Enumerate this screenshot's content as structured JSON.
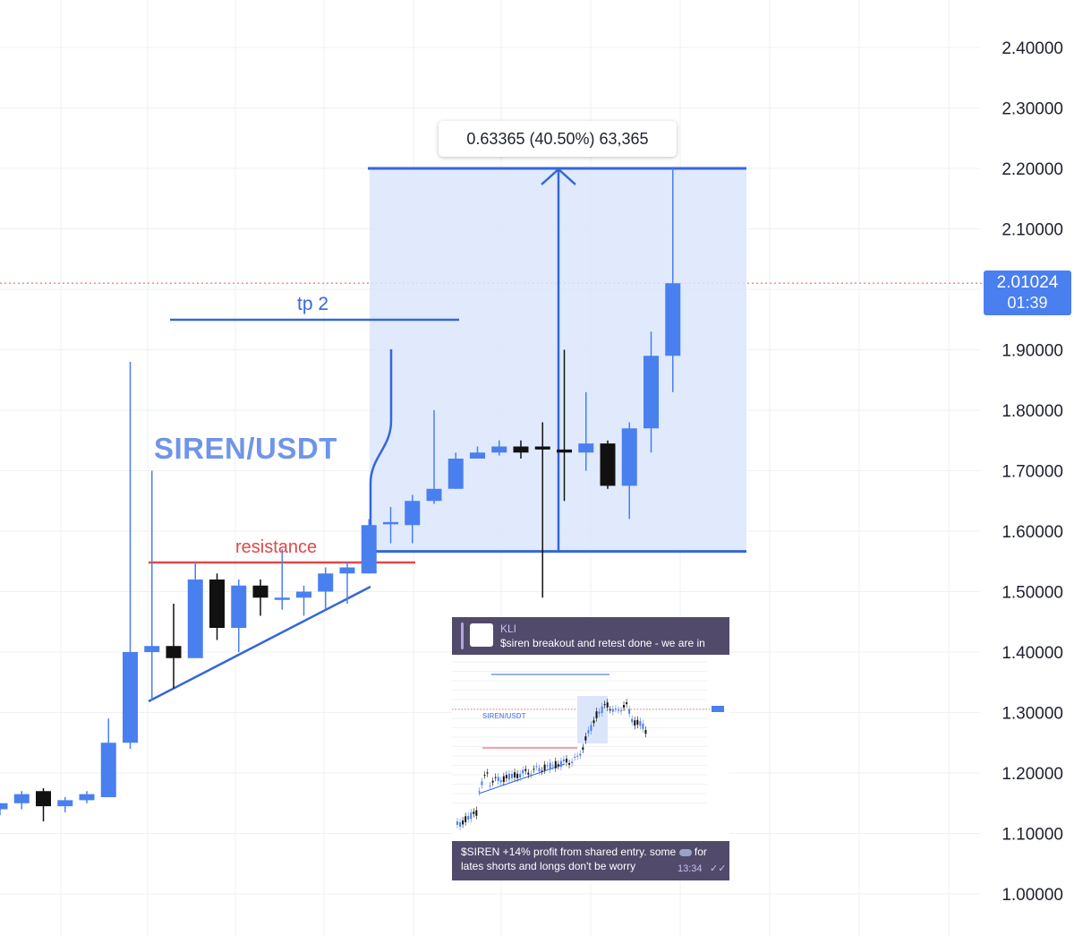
{
  "chart_data": {
    "type": "candlestick",
    "pair_label": "SIREN/USDT",
    "y_axis": {
      "ticks": [
        "2.40000",
        "2.30000",
        "2.20000",
        "2.10000",
        "1.90000",
        "1.80000",
        "1.70000",
        "1.60000",
        "1.50000",
        "1.40000",
        "1.30000",
        "1.20000",
        "1.10000",
        "1.00000"
      ],
      "range": [
        0.985,
        2.455
      ]
    },
    "candles": [
      {
        "o": 1.14,
        "h": 1.15,
        "l": 1.13,
        "c": 1.15
      },
      {
        "o": 1.15,
        "h": 1.17,
        "l": 1.14,
        "c": 1.165
      },
      {
        "o": 1.17,
        "h": 1.175,
        "l": 1.12,
        "c": 1.145
      },
      {
        "o": 1.145,
        "h": 1.16,
        "l": 1.135,
        "c": 1.155
      },
      {
        "o": 1.155,
        "h": 1.17,
        "l": 1.15,
        "c": 1.165
      },
      {
        "o": 1.16,
        "h": 1.29,
        "l": 1.16,
        "c": 1.25
      },
      {
        "o": 1.25,
        "h": 1.88,
        "l": 1.24,
        "c": 1.4
      },
      {
        "o": 1.4,
        "h": 1.7,
        "l": 1.32,
        "c": 1.41
      },
      {
        "o": 1.41,
        "h": 1.48,
        "l": 1.34,
        "c": 1.39
      },
      {
        "o": 1.39,
        "h": 1.55,
        "l": 1.39,
        "c": 1.52
      },
      {
        "o": 1.52,
        "h": 1.53,
        "l": 1.42,
        "c": 1.44
      },
      {
        "o": 1.44,
        "h": 1.52,
        "l": 1.4,
        "c": 1.51
      },
      {
        "o": 1.51,
        "h": 1.52,
        "l": 1.46,
        "c": 1.49
      },
      {
        "o": 1.49,
        "h": 1.57,
        "l": 1.47,
        "c": 1.49
      },
      {
        "o": 1.49,
        "h": 1.51,
        "l": 1.46,
        "c": 1.5
      },
      {
        "o": 1.5,
        "h": 1.54,
        "l": 1.47,
        "c": 1.53
      },
      {
        "o": 1.53,
        "h": 1.55,
        "l": 1.48,
        "c": 1.54
      },
      {
        "o": 1.53,
        "h": 1.62,
        "l": 1.53,
        "c": 1.61
      },
      {
        "o": 1.615,
        "h": 1.64,
        "l": 1.58,
        "c": 1.615
      },
      {
        "o": 1.61,
        "h": 1.66,
        "l": 1.58,
        "c": 1.65
      },
      {
        "o": 1.65,
        "h": 1.8,
        "l": 1.645,
        "c": 1.67
      },
      {
        "o": 1.67,
        "h": 1.73,
        "l": 1.67,
        "c": 1.72
      },
      {
        "o": 1.72,
        "h": 1.74,
        "l": 1.72,
        "c": 1.73
      },
      {
        "o": 1.73,
        "h": 1.75,
        "l": 1.725,
        "c": 1.74
      },
      {
        "o": 1.74,
        "h": 1.75,
        "l": 1.72,
        "c": 1.73
      },
      {
        "o": 1.74,
        "h": 1.78,
        "l": 1.49,
        "c": 1.735
      },
      {
        "o": 1.735,
        "h": 1.9,
        "l": 1.65,
        "c": 1.73
      },
      {
        "o": 1.73,
        "h": 1.83,
        "l": 1.7,
        "c": 1.745
      },
      {
        "o": 1.745,
        "h": 1.75,
        "l": 1.67,
        "c": 1.675
      },
      {
        "o": 1.675,
        "h": 1.78,
        "l": 1.62,
        "c": 1.77
      },
      {
        "o": 1.77,
        "h": 1.93,
        "l": 1.73,
        "c": 1.89
      },
      {
        "o": 1.89,
        "h": 2.2,
        "l": 1.83,
        "c": 2.01
      }
    ],
    "current_price": "2.01024",
    "countdown": "01:39",
    "measure_label": "0.63365 (40.50%) 63,365",
    "measure_range": {
      "from": 1.5665,
      "to": 2.2
    },
    "annotations": {
      "tp_label": "tp 2",
      "resistance_label": "resistance"
    },
    "colors": {
      "up": "#4a7ff0",
      "down": "#111111",
      "measure_fill": "#dbe6fb",
      "accent": "#3567d8",
      "resistance": "#e04848"
    }
  },
  "inset": {
    "sender": "KLI",
    "quote": "$siren breakout and retest done - we are in",
    "message": "$SIREN  +14% profit from shared entry. some",
    "message_tail": "for lates shorts and longs don't be worry",
    "time": "13:34",
    "mini_title": "SIREN/USDT"
  }
}
